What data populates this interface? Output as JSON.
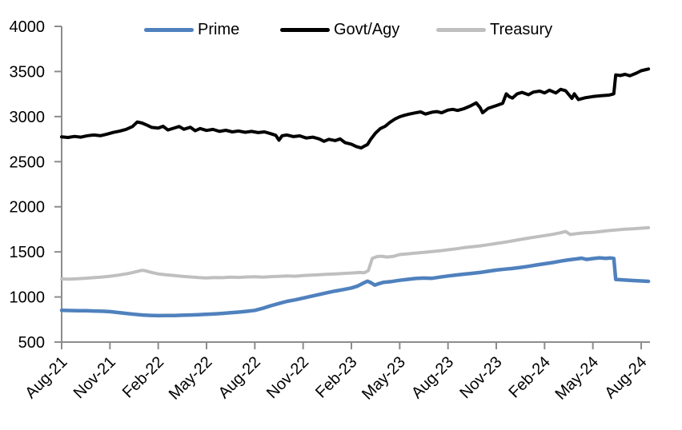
{
  "chart_data": {
    "type": "line",
    "title": "",
    "legend_position": "top",
    "grid": false,
    "y_axis": {
      "min": 500,
      "max": 4000,
      "tick_step": 500,
      "tick_labels": [
        "500",
        "1000",
        "1500",
        "2000",
        "2500",
        "3000",
        "3500",
        "4000"
      ]
    },
    "x_axis": {
      "unit": "months-since-Aug-21",
      "range": [
        0,
        36.45
      ],
      "tick_positions_months": [
        0,
        3,
        6,
        9,
        12,
        15,
        18,
        21,
        24,
        27,
        30,
        33,
        36
      ],
      "tick_labels": [
        "Aug-21",
        "Nov-21",
        "Feb-22",
        "May-22",
        "Aug-22",
        "Nov-22",
        "Feb-23",
        "May-23",
        "Aug-23",
        "Nov-23",
        "Feb-24",
        "May-24",
        "Aug-24"
      ]
    },
    "axis_color": "#8c8c8c",
    "text_color": "#000000",
    "series": [
      {
        "name": "Prime",
        "color": "#4f81bd",
        "stroke_width": 4.5,
        "points": [
          [
            0,
            852
          ],
          [
            0.5,
            850
          ],
          [
            1,
            848
          ],
          [
            1.5,
            847
          ],
          [
            2,
            845
          ],
          [
            2.5,
            842
          ],
          [
            3,
            838
          ],
          [
            3.5,
            828
          ],
          [
            4,
            818
          ],
          [
            4.5,
            808
          ],
          [
            5,
            800
          ],
          [
            5.5,
            796
          ],
          [
            6,
            793
          ],
          [
            6.5,
            794
          ],
          [
            7,
            795
          ],
          [
            7.5,
            798
          ],
          [
            8,
            800
          ],
          [
            8.5,
            804
          ],
          [
            9,
            808
          ],
          [
            9.5,
            813
          ],
          [
            10,
            818
          ],
          [
            10.5,
            825
          ],
          [
            11,
            832
          ],
          [
            11.5,
            841
          ],
          [
            12,
            852
          ],
          [
            12.5,
            875
          ],
          [
            13,
            903
          ],
          [
            13.5,
            928
          ],
          [
            14,
            952
          ],
          [
            14.5,
            968
          ],
          [
            15,
            988
          ],
          [
            15.5,
            1008
          ],
          [
            16,
            1028
          ],
          [
            16.5,
            1048
          ],
          [
            17,
            1066
          ],
          [
            17.5,
            1082
          ],
          [
            18,
            1100
          ],
          [
            18.4,
            1122
          ],
          [
            18.7,
            1150
          ],
          [
            19,
            1175
          ],
          [
            19.2,
            1160
          ],
          [
            19.45,
            1132
          ],
          [
            19.7,
            1148
          ],
          [
            20,
            1163
          ],
          [
            20.5,
            1172
          ],
          [
            21,
            1185
          ],
          [
            21.5,
            1196
          ],
          [
            22,
            1205
          ],
          [
            22.5,
            1210
          ],
          [
            23,
            1207
          ],
          [
            23.5,
            1220
          ],
          [
            24,
            1233
          ],
          [
            24.5,
            1243
          ],
          [
            25,
            1253
          ],
          [
            25.5,
            1262
          ],
          [
            26,
            1272
          ],
          [
            26.5,
            1285
          ],
          [
            27,
            1298
          ],
          [
            27.5,
            1308
          ],
          [
            28,
            1316
          ],
          [
            28.5,
            1328
          ],
          [
            29,
            1340
          ],
          [
            29.5,
            1355
          ],
          [
            30,
            1368
          ],
          [
            30.5,
            1382
          ],
          [
            31,
            1398
          ],
          [
            31.5,
            1412
          ],
          [
            32,
            1422
          ],
          [
            32.3,
            1430
          ],
          [
            32.6,
            1416
          ],
          [
            33,
            1426
          ],
          [
            33.4,
            1434
          ],
          [
            33.8,
            1428
          ],
          [
            34.1,
            1432
          ],
          [
            34.3,
            1428
          ],
          [
            34.42,
            1195
          ],
          [
            34.8,
            1190
          ],
          [
            35,
            1188
          ],
          [
            35.5,
            1182
          ],
          [
            36,
            1178
          ],
          [
            36.45,
            1173
          ]
        ]
      },
      {
        "name": "Govt/Agy",
        "color": "#000000",
        "stroke_width": 4,
        "points": [
          [
            0,
            2775
          ],
          [
            0.4,
            2768
          ],
          [
            0.8,
            2780
          ],
          [
            1.2,
            2772
          ],
          [
            1.6,
            2788
          ],
          [
            2,
            2796
          ],
          [
            2.4,
            2788
          ],
          [
            2.8,
            2805
          ],
          [
            3.2,
            2824
          ],
          [
            3.6,
            2838
          ],
          [
            4,
            2858
          ],
          [
            4.4,
            2890
          ],
          [
            4.7,
            2940
          ],
          [
            5,
            2928
          ],
          [
            5.3,
            2905
          ],
          [
            5.6,
            2880
          ],
          [
            6,
            2872
          ],
          [
            6.3,
            2892
          ],
          [
            6.6,
            2852
          ],
          [
            7,
            2874
          ],
          [
            7.3,
            2890
          ],
          [
            7.6,
            2860
          ],
          [
            8,
            2882
          ],
          [
            8.3,
            2843
          ],
          [
            8.6,
            2868
          ],
          [
            9,
            2846
          ],
          [
            9.4,
            2858
          ],
          [
            9.8,
            2836
          ],
          [
            10.2,
            2848
          ],
          [
            10.6,
            2830
          ],
          [
            11,
            2840
          ],
          [
            11.4,
            2826
          ],
          [
            11.8,
            2836
          ],
          [
            12.2,
            2822
          ],
          [
            12.6,
            2830
          ],
          [
            13,
            2810
          ],
          [
            13.3,
            2792
          ],
          [
            13.5,
            2738
          ],
          [
            13.7,
            2788
          ],
          [
            14,
            2796
          ],
          [
            14.4,
            2778
          ],
          [
            14.8,
            2786
          ],
          [
            15.2,
            2762
          ],
          [
            15.6,
            2772
          ],
          [
            16,
            2752
          ],
          [
            16.3,
            2726
          ],
          [
            16.6,
            2748
          ],
          [
            17,
            2734
          ],
          [
            17.3,
            2752
          ],
          [
            17.6,
            2712
          ],
          [
            18,
            2694
          ],
          [
            18.3,
            2668
          ],
          [
            18.6,
            2652
          ],
          [
            18.8,
            2672
          ],
          [
            19,
            2690
          ],
          [
            19.2,
            2748
          ],
          [
            19.5,
            2818
          ],
          [
            19.8,
            2868
          ],
          [
            20.1,
            2892
          ],
          [
            20.4,
            2938
          ],
          [
            20.7,
            2972
          ],
          [
            21,
            2998
          ],
          [
            21.3,
            3015
          ],
          [
            21.6,
            3028
          ],
          [
            22,
            3042
          ],
          [
            22.3,
            3052
          ],
          [
            22.6,
            3028
          ],
          [
            23,
            3048
          ],
          [
            23.3,
            3055
          ],
          [
            23.6,
            3042
          ],
          [
            24,
            3072
          ],
          [
            24.3,
            3080
          ],
          [
            24.6,
            3068
          ],
          [
            25,
            3088
          ],
          [
            25.4,
            3118
          ],
          [
            25.75,
            3152
          ],
          [
            26,
            3098
          ],
          [
            26.15,
            3042
          ],
          [
            26.5,
            3092
          ],
          [
            27,
            3122
          ],
          [
            27.4,
            3148
          ],
          [
            27.62,
            3252
          ],
          [
            27.8,
            3222
          ],
          [
            28,
            3205
          ],
          [
            28.3,
            3252
          ],
          [
            28.6,
            3268
          ],
          [
            29,
            3242
          ],
          [
            29.3,
            3272
          ],
          [
            29.7,
            3282
          ],
          [
            30,
            3262
          ],
          [
            30.3,
            3292
          ],
          [
            30.7,
            3262
          ],
          [
            31,
            3302
          ],
          [
            31.3,
            3288
          ],
          [
            31.7,
            3202
          ],
          [
            31.85,
            3252
          ],
          [
            32.1,
            3188
          ],
          [
            32.5,
            3208
          ],
          [
            33,
            3222
          ],
          [
            33.5,
            3232
          ],
          [
            34,
            3238
          ],
          [
            34.3,
            3252
          ],
          [
            34.42,
            3462
          ],
          [
            34.7,
            3455
          ],
          [
            35,
            3468
          ],
          [
            35.3,
            3452
          ],
          [
            35.7,
            3482
          ],
          [
            36,
            3508
          ],
          [
            36.45,
            3528
          ]
        ]
      },
      {
        "name": "Treasury",
        "color": "#bfbfbf",
        "stroke_width": 4,
        "points": [
          [
            0,
            1200
          ],
          [
            0.5,
            1197
          ],
          [
            1,
            1202
          ],
          [
            1.5,
            1208
          ],
          [
            2,
            1214
          ],
          [
            2.5,
            1221
          ],
          [
            3,
            1230
          ],
          [
            3.5,
            1242
          ],
          [
            4,
            1256
          ],
          [
            4.4,
            1270
          ],
          [
            4.8,
            1288
          ],
          [
            5,
            1296
          ],
          [
            5.2,
            1290
          ],
          [
            5.6,
            1272
          ],
          [
            6,
            1256
          ],
          [
            6.5,
            1245
          ],
          [
            7,
            1237
          ],
          [
            7.5,
            1228
          ],
          [
            8,
            1222
          ],
          [
            8.5,
            1215
          ],
          [
            9,
            1211
          ],
          [
            9.5,
            1216
          ],
          [
            10,
            1214
          ],
          [
            10.5,
            1220
          ],
          [
            11,
            1217
          ],
          [
            11.5,
            1222
          ],
          [
            12,
            1225
          ],
          [
            12.5,
            1220
          ],
          [
            13,
            1226
          ],
          [
            13.5,
            1229
          ],
          [
            14,
            1234
          ],
          [
            14.5,
            1230
          ],
          [
            15,
            1238
          ],
          [
            15.5,
            1242
          ],
          [
            16,
            1247
          ],
          [
            16.5,
            1252
          ],
          [
            17,
            1256
          ],
          [
            17.5,
            1261
          ],
          [
            18,
            1266
          ],
          [
            18.5,
            1272
          ],
          [
            18.8,
            1268
          ],
          [
            19.05,
            1292
          ],
          [
            19.3,
            1428
          ],
          [
            19.6,
            1448
          ],
          [
            19.9,
            1452
          ],
          [
            20.2,
            1443
          ],
          [
            20.6,
            1450
          ],
          [
            21,
            1470
          ],
          [
            21.5,
            1478
          ],
          [
            22,
            1487
          ],
          [
            22.5,
            1495
          ],
          [
            23,
            1503
          ],
          [
            23.5,
            1512
          ],
          [
            24,
            1523
          ],
          [
            24.5,
            1534
          ],
          [
            25,
            1547
          ],
          [
            25.5,
            1557
          ],
          [
            26,
            1567
          ],
          [
            26.5,
            1579
          ],
          [
            27,
            1593
          ],
          [
            27.5,
            1607
          ],
          [
            28,
            1622
          ],
          [
            28.5,
            1638
          ],
          [
            29,
            1653
          ],
          [
            29.5,
            1667
          ],
          [
            30,
            1680
          ],
          [
            30.5,
            1694
          ],
          [
            31,
            1712
          ],
          [
            31.3,
            1726
          ],
          [
            31.6,
            1693
          ],
          [
            32,
            1702
          ],
          [
            32.5,
            1712
          ],
          [
            33,
            1717
          ],
          [
            33.5,
            1726
          ],
          [
            34,
            1736
          ],
          [
            34.5,
            1744
          ],
          [
            35,
            1751
          ],
          [
            35.5,
            1756
          ],
          [
            36,
            1763
          ],
          [
            36.45,
            1768
          ]
        ]
      }
    ]
  }
}
